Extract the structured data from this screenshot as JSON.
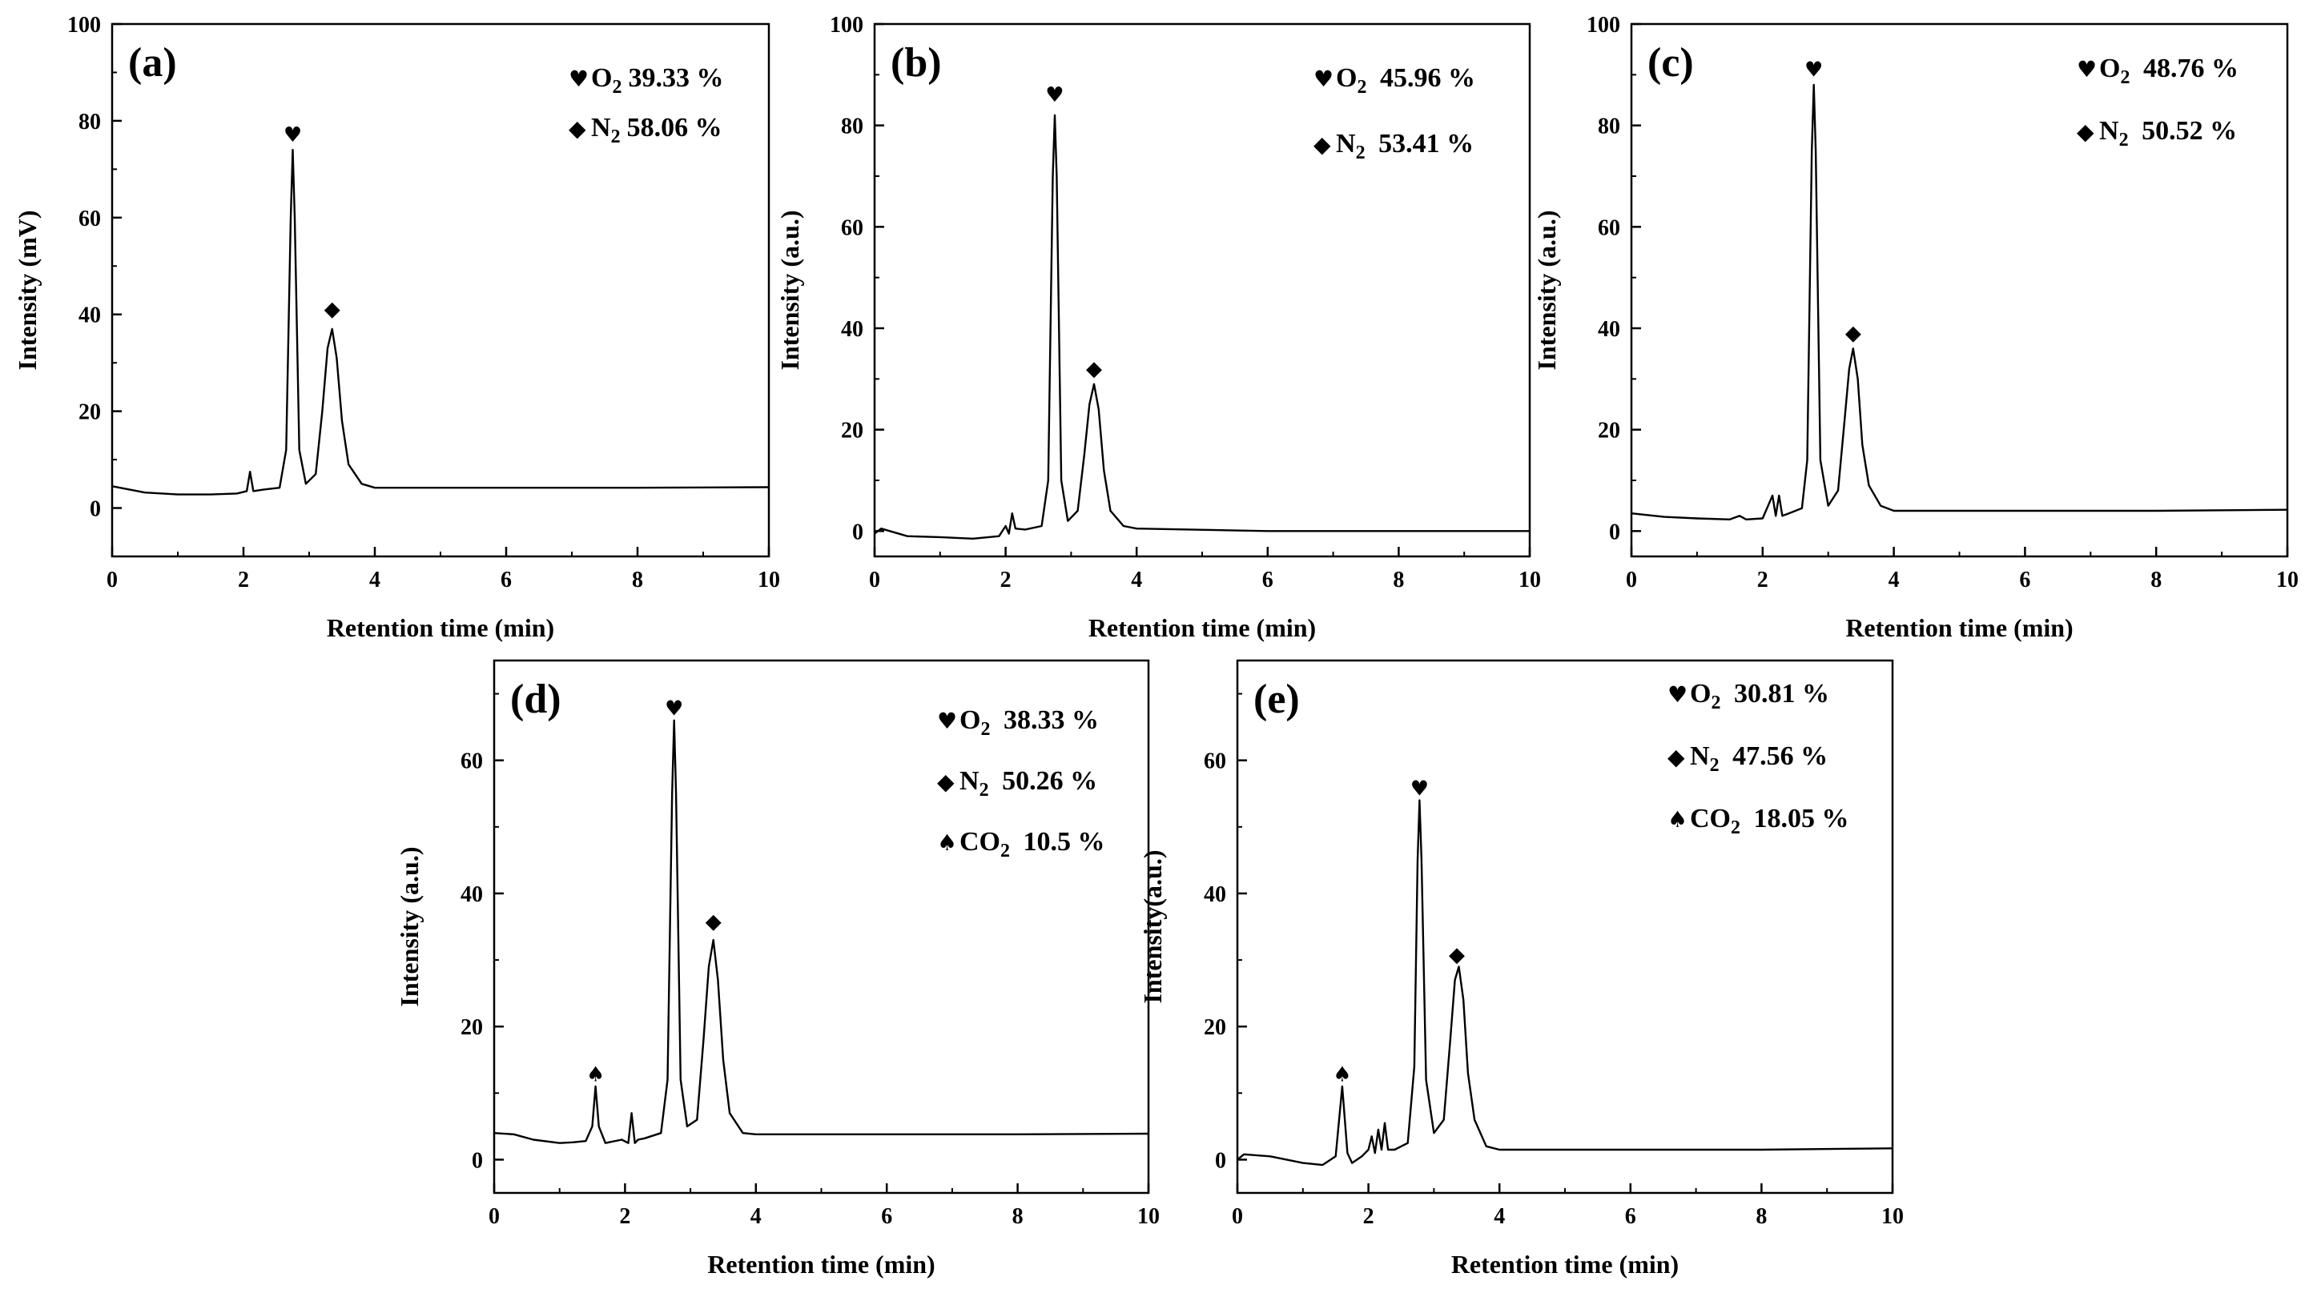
{
  "symbols": {
    "O2": "♥",
    "N2": "◆",
    "CO2": "♠"
  },
  "chart_data": [
    {
      "type": "line",
      "panel_label": "(a)",
      "xlabel": "Retention time (min)",
      "ylabel": "Intensity (mV)",
      "xlim": [
        0,
        10
      ],
      "ylim": [
        -10,
        100
      ],
      "xticks": [
        0,
        2,
        4,
        6,
        8,
        10
      ],
      "yticks": [
        0,
        20,
        40,
        60,
        80,
        100
      ],
      "legend": [
        {
          "species": "O2",
          "formula": "O",
          "sub": "2",
          "value": "39.33 %"
        },
        {
          "species": "N2",
          "formula": "N",
          "sub": "2",
          "value": "58.06 %"
        }
      ],
      "markers": [
        {
          "species": "O2",
          "x": 2.75,
          "y": 76
        },
        {
          "species": "N2",
          "x": 3.35,
          "y": 40
        }
      ],
      "series": [
        {
          "name": "chromatogram",
          "x": [
            0,
            0.5,
            1.0,
            1.5,
            1.9,
            2.05,
            2.1,
            2.15,
            2.3,
            2.55,
            2.65,
            2.72,
            2.75,
            2.78,
            2.85,
            2.95,
            3.1,
            3.2,
            3.28,
            3.35,
            3.42,
            3.5,
            3.6,
            3.8,
            4.0,
            6.0,
            8.0,
            10.0
          ],
          "y": [
            4.5,
            3.2,
            2.8,
            2.8,
            3.0,
            3.5,
            7.5,
            3.5,
            3.8,
            4.2,
            12,
            60,
            74,
            60,
            12,
            5,
            7,
            20,
            33,
            37,
            31,
            18,
            9,
            5,
            4.2,
            4.2,
            4.2,
            4.3
          ]
        }
      ]
    },
    {
      "type": "line",
      "panel_label": "(b)",
      "xlabel": "Retention time (min)",
      "ylabel": "Intensity (a.u.)",
      "xlim": [
        0,
        10
      ],
      "ylim": [
        -5,
        100
      ],
      "xticks": [
        0,
        2,
        4,
        6,
        8,
        10
      ],
      "yticks": [
        0,
        20,
        40,
        60,
        80,
        100
      ],
      "legend": [
        {
          "species": "O2",
          "formula": "O",
          "sub": "2",
          "value": " 45.96 %"
        },
        {
          "species": "N2",
          "formula": "N",
          "sub": "2",
          "value": " 53.41 %"
        }
      ],
      "markers": [
        {
          "species": "O2",
          "x": 2.75,
          "y": 85
        },
        {
          "species": "N2",
          "x": 3.35,
          "y": 31
        }
      ],
      "series": [
        {
          "name": "chromatogram",
          "x": [
            0,
            0.1,
            0.5,
            1.0,
            1.5,
            1.9,
            2.0,
            2.05,
            2.1,
            2.15,
            2.3,
            2.55,
            2.65,
            2.72,
            2.75,
            2.78,
            2.85,
            2.95,
            3.1,
            3.2,
            3.28,
            3.35,
            3.42,
            3.5,
            3.6,
            3.8,
            4.0,
            6.0,
            8.0,
            10.0
          ],
          "y": [
            -0.5,
            0.5,
            -1.0,
            -1.2,
            -1.5,
            -1.0,
            1.0,
            -0.5,
            3.5,
            0.5,
            0.3,
            1.0,
            10,
            70,
            82,
            70,
            10,
            2,
            4,
            15,
            25,
            29,
            24,
            12,
            4,
            1.0,
            0.5,
            0.0,
            0.0,
            0.0
          ]
        }
      ]
    },
    {
      "type": "line",
      "panel_label": "(c)",
      "xlabel": "Retention time (min)",
      "ylabel": "Intensity (a.u.)",
      "xlim": [
        0,
        10
      ],
      "ylim": [
        -5,
        100
      ],
      "xticks": [
        0,
        2,
        4,
        6,
        8,
        10
      ],
      "yticks": [
        0,
        20,
        40,
        60,
        80,
        100
      ],
      "legend": [
        {
          "species": "O2",
          "formula": "O",
          "sub": "2",
          "value": " 48.76 %"
        },
        {
          "species": "N2",
          "formula": "N",
          "sub": "2",
          "value": " 50.52 %"
        }
      ],
      "markers": [
        {
          "species": "O2",
          "x": 2.78,
          "y": 90
        },
        {
          "species": "N2",
          "x": 3.38,
          "y": 38
        }
      ],
      "series": [
        {
          "name": "chromatogram",
          "x": [
            0,
            0.5,
            1.0,
            1.5,
            1.65,
            1.75,
            2.0,
            2.15,
            2.2,
            2.25,
            2.3,
            2.4,
            2.6,
            2.68,
            2.75,
            2.78,
            2.81,
            2.88,
            3.0,
            3.15,
            3.25,
            3.32,
            3.38,
            3.45,
            3.52,
            3.62,
            3.8,
            4.0,
            6.0,
            8.0,
            10.0
          ],
          "y": [
            3.5,
            2.8,
            2.5,
            2.3,
            3.0,
            2.3,
            2.5,
            7,
            3,
            7,
            3,
            3.5,
            4.5,
            14,
            75,
            88,
            75,
            14,
            5,
            8,
            22,
            32,
            36,
            30,
            17,
            9,
            5,
            4.0,
            4.0,
            4.0,
            4.2
          ]
        }
      ]
    },
    {
      "type": "line",
      "panel_label": "(d)",
      "xlabel": "Retention time (min)",
      "ylabel": "Intensity (a.u.)",
      "xlim": [
        0,
        10
      ],
      "ylim": [
        -5,
        75
      ],
      "xticks": [
        0,
        2,
        4,
        6,
        8,
        10
      ],
      "yticks": [
        0,
        20,
        40,
        60
      ],
      "legend": [
        {
          "species": "O2",
          "formula": "O",
          "sub": "2",
          "value": " 38.33 %"
        },
        {
          "species": "N2",
          "formula": "N",
          "sub": "2",
          "value": " 50.26 %"
        },
        {
          "species": "CO2",
          "formula": "CO",
          "sub": "2",
          "value": " 10.5 %"
        }
      ],
      "markers": [
        {
          "species": "CO2",
          "x": 1.55,
          "y": 12
        },
        {
          "species": "O2",
          "x": 2.75,
          "y": 67
        },
        {
          "species": "N2",
          "x": 3.35,
          "y": 35
        }
      ],
      "series": [
        {
          "name": "chromatogram",
          "x": [
            0,
            0.3,
            0.6,
            1.0,
            1.2,
            1.4,
            1.5,
            1.55,
            1.6,
            1.7,
            1.95,
            2.05,
            2.1,
            2.15,
            2.2,
            2.3,
            2.55,
            2.65,
            2.72,
            2.75,
            2.78,
            2.85,
            2.95,
            3.1,
            3.2,
            3.28,
            3.35,
            3.42,
            3.5,
            3.6,
            3.8,
            4.0,
            6.0,
            8.0,
            10.0
          ],
          "y": [
            4.0,
            3.8,
            3.0,
            2.5,
            2.6,
            2.8,
            5,
            11,
            5,
            2.5,
            3.0,
            2.5,
            7,
            2.5,
            3.0,
            3.2,
            4.0,
            12,
            55,
            66,
            55,
            12,
            5,
            6,
            18,
            29,
            33,
            27,
            15,
            7,
            4,
            3.8,
            3.8,
            3.8,
            3.9
          ]
        }
      ]
    },
    {
      "type": "line",
      "panel_label": "(e)",
      "xlabel": "Retention time (min)",
      "ylabel": "Intensity(a.u.)",
      "xlim": [
        0,
        10
      ],
      "ylim": [
        -5,
        75
      ],
      "xticks": [
        0,
        2,
        4,
        6,
        8,
        10
      ],
      "yticks": [
        0,
        20,
        40,
        60
      ],
      "legend": [
        {
          "species": "O2",
          "formula": "O",
          "sub": "2",
          "value": " 30.81 %"
        },
        {
          "species": "N2",
          "formula": "N",
          "sub": "2",
          "value": " 47.56 %"
        },
        {
          "species": "CO2",
          "formula": "CO",
          "sub": "2",
          "value": " 18.05 %"
        }
      ],
      "markers": [
        {
          "species": "CO2",
          "x": 1.6,
          "y": 12
        },
        {
          "species": "O2",
          "x": 2.78,
          "y": 55
        },
        {
          "species": "N2",
          "x": 3.35,
          "y": 30
        }
      ],
      "series": [
        {
          "name": "chromatogram",
          "x": [
            0,
            0.1,
            0.5,
            1.0,
            1.3,
            1.5,
            1.6,
            1.68,
            1.75,
            1.9,
            2.0,
            2.05,
            2.1,
            2.15,
            2.2,
            2.25,
            2.3,
            2.4,
            2.6,
            2.7,
            2.75,
            2.78,
            2.81,
            2.88,
            3.0,
            3.15,
            3.25,
            3.32,
            3.38,
            3.45,
            3.52,
            3.62,
            3.8,
            4.0,
            6.0,
            8.0,
            10.0
          ],
          "y": [
            0.0,
            0.8,
            0.5,
            -0.5,
            -0.8,
            0.5,
            11,
            1.0,
            -0.5,
            0.5,
            1.5,
            3.5,
            1.0,
            4.5,
            1.5,
            5.5,
            1.5,
            1.5,
            2.5,
            14,
            45,
            54,
            45,
            12,
            4,
            6,
            18,
            27,
            29,
            24,
            13,
            6,
            2,
            1.5,
            1.5,
            1.5,
            1.7
          ]
        }
      ]
    }
  ]
}
